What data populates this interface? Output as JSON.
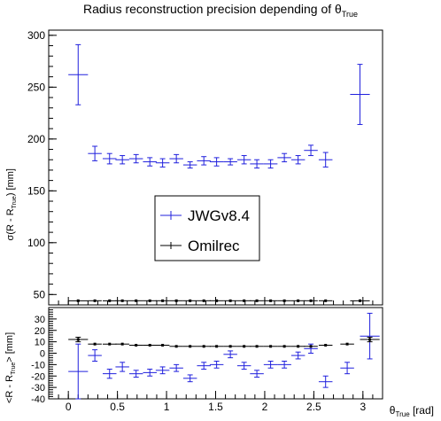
{
  "title": {
    "main": "Radius reconstruction precision depending of θ",
    "sub": "True"
  },
  "legend_labels": [
    "JWGv8.4",
    "Omilrec"
  ],
  "colors": {
    "jwg": "#2020dd",
    "omil": "#000000"
  },
  "chart_data": [
    {
      "type": "scatter",
      "title": "Radius reconstruction precision depending of θTrue",
      "ylabel": "σ(R - R_True) [mm]",
      "xlim": [
        -0.2,
        3.2
      ],
      "ylim": [
        40,
        305
      ],
      "xticks": [
        "0",
        "0.5",
        "1",
        "1.5",
        "2",
        "2.5",
        "3"
      ],
      "yticks": [
        "50",
        "100",
        "150",
        "200",
        "250",
        "300"
      ],
      "legend": {
        "entries": [
          "JWGv8.4",
          "Omilrec"
        ],
        "placement": "center"
      },
      "grid": false,
      "series": [
        {
          "name": "JWGv8.4",
          "color": "#2020dd",
          "points": [
            {
              "x": 0.1,
              "xerr": 0.1,
              "y": 262,
              "yerr": 29
            },
            {
              "x": 0.27,
              "xerr": 0.07,
              "y": 186,
              "yerr": 7
            },
            {
              "x": 0.42,
              "xerr": 0.07,
              "y": 181,
              "yerr": 5
            },
            {
              "x": 0.55,
              "xerr": 0.07,
              "y": 180,
              "yerr": 4
            },
            {
              "x": 0.69,
              "xerr": 0.07,
              "y": 181,
              "yerr": 4
            },
            {
              "x": 0.83,
              "xerr": 0.07,
              "y": 178,
              "yerr": 4
            },
            {
              "x": 0.96,
              "xerr": 0.07,
              "y": 177,
              "yerr": 4
            },
            {
              "x": 1.1,
              "xerr": 0.07,
              "y": 181,
              "yerr": 4
            },
            {
              "x": 1.24,
              "xerr": 0.07,
              "y": 175,
              "yerr": 3
            },
            {
              "x": 1.38,
              "xerr": 0.07,
              "y": 179,
              "yerr": 4
            },
            {
              "x": 1.51,
              "xerr": 0.07,
              "y": 178,
              "yerr": 4
            },
            {
              "x": 1.65,
              "xerr": 0.07,
              "y": 178,
              "yerr": 3
            },
            {
              "x": 1.79,
              "xerr": 0.07,
              "y": 180,
              "yerr": 4
            },
            {
              "x": 1.92,
              "xerr": 0.07,
              "y": 176,
              "yerr": 4
            },
            {
              "x": 2.06,
              "xerr": 0.07,
              "y": 176,
              "yerr": 4
            },
            {
              "x": 2.2,
              "xerr": 0.07,
              "y": 182,
              "yerr": 4
            },
            {
              "x": 2.34,
              "xerr": 0.07,
              "y": 180,
              "yerr": 4
            },
            {
              "x": 2.47,
              "xerr": 0.07,
              "y": 189,
              "yerr": 5
            },
            {
              "x": 2.62,
              "xerr": 0.07,
              "y": 180,
              "yerr": 7
            },
            {
              "x": 2.97,
              "xerr": 0.1,
              "y": 243,
              "yerr": 29
            }
          ]
        },
        {
          "name": "Omilrec",
          "color": "#000000",
          "points": [
            {
              "x": 0.1,
              "xerr": 0.1,
              "y": 44,
              "yerr": 1
            },
            {
              "x": 0.27,
              "xerr": 0.07,
              "y": 44,
              "yerr": 0.5
            },
            {
              "x": 0.42,
              "xerr": 0.07,
              "y": 44,
              "yerr": 0.5
            },
            {
              "x": 0.55,
              "xerr": 0.07,
              "y": 44,
              "yerr": 0.5
            },
            {
              "x": 0.69,
              "xerr": 0.07,
              "y": 44,
              "yerr": 0.5
            },
            {
              "x": 0.83,
              "xerr": 0.07,
              "y": 44,
              "yerr": 0.5
            },
            {
              "x": 0.96,
              "xerr": 0.07,
              "y": 44,
              "yerr": 0.5
            },
            {
              "x": 1.1,
              "xerr": 0.07,
              "y": 44,
              "yerr": 0.5
            },
            {
              "x": 1.24,
              "xerr": 0.07,
              "y": 44,
              "yerr": 0.5
            },
            {
              "x": 1.38,
              "xerr": 0.07,
              "y": 44,
              "yerr": 0.5
            },
            {
              "x": 1.51,
              "xerr": 0.07,
              "y": 44,
              "yerr": 0.5
            },
            {
              "x": 1.65,
              "xerr": 0.07,
              "y": 44,
              "yerr": 0.5
            },
            {
              "x": 1.79,
              "xerr": 0.07,
              "y": 44,
              "yerr": 0.5
            },
            {
              "x": 1.92,
              "xerr": 0.07,
              "y": 44,
              "yerr": 0.5
            },
            {
              "x": 2.06,
              "xerr": 0.07,
              "y": 44,
              "yerr": 0.5
            },
            {
              "x": 2.2,
              "xerr": 0.07,
              "y": 44,
              "yerr": 0.5
            },
            {
              "x": 2.34,
              "xerr": 0.07,
              "y": 44,
              "yerr": 0.5
            },
            {
              "x": 2.47,
              "xerr": 0.07,
              "y": 44,
              "yerr": 0.5
            },
            {
              "x": 2.62,
              "xerr": 0.07,
              "y": 44,
              "yerr": 0.5
            },
            {
              "x": 2.97,
              "xerr": 0.1,
              "y": 44,
              "yerr": 1
            }
          ]
        }
      ]
    },
    {
      "type": "scatter",
      "ylabel": "<R - R_True> [mm]",
      "xlabel": "θ_True [rad]",
      "xlim": [
        -0.2,
        3.2
      ],
      "ylim": [
        -40,
        40
      ],
      "xticks": [
        "0",
        "0.5",
        "1",
        "1.5",
        "2",
        "2.5",
        "3"
      ],
      "yticks": [
        "-40",
        "-30",
        "-20",
        "-10",
        "0",
        "10",
        "20",
        "30"
      ],
      "grid": false,
      "series": [
        {
          "name": "JWGv8.4",
          "color": "#2020dd",
          "points": [
            {
              "x": 0.1,
              "xerr": 0.1,
              "y": -16,
              "yerr": 24
            },
            {
              "x": 0.27,
              "xerr": 0.07,
              "y": -2,
              "yerr": 5
            },
            {
              "x": 0.42,
              "xerr": 0.07,
              "y": -18,
              "yerr": 4
            },
            {
              "x": 0.55,
              "xerr": 0.07,
              "y": -12,
              "yerr": 4
            },
            {
              "x": 0.69,
              "xerr": 0.07,
              "y": -18,
              "yerr": 3
            },
            {
              "x": 0.83,
              "xerr": 0.07,
              "y": -17,
              "yerr": 3
            },
            {
              "x": 0.96,
              "xerr": 0.07,
              "y": -15,
              "yerr": 3
            },
            {
              "x": 1.1,
              "xerr": 0.07,
              "y": -13,
              "yerr": 3
            },
            {
              "x": 1.24,
              "xerr": 0.07,
              "y": -22,
              "yerr": 3
            },
            {
              "x": 1.38,
              "xerr": 0.07,
              "y": -11,
              "yerr": 3
            },
            {
              "x": 1.51,
              "xerr": 0.07,
              "y": -10,
              "yerr": 3
            },
            {
              "x": 1.65,
              "xerr": 0.07,
              "y": -1,
              "yerr": 3
            },
            {
              "x": 1.79,
              "xerr": 0.07,
              "y": -11,
              "yerr": 3
            },
            {
              "x": 1.92,
              "xerr": 0.07,
              "y": -18,
              "yerr": 3
            },
            {
              "x": 2.06,
              "xerr": 0.07,
              "y": -10,
              "yerr": 3
            },
            {
              "x": 2.2,
              "xerr": 0.07,
              "y": -10,
              "yerr": 3
            },
            {
              "x": 2.34,
              "xerr": 0.07,
              "y": -2,
              "yerr": 3
            },
            {
              "x": 2.47,
              "xerr": 0.07,
              "y": 4,
              "yerr": 4
            },
            {
              "x": 2.62,
              "xerr": 0.07,
              "y": -25,
              "yerr": 5
            },
            {
              "x": 2.84,
              "xerr": 0.07,
              "y": -13,
              "yerr": 5
            },
            {
              "x": 3.07,
              "xerr": 0.1,
              "y": 15,
              "yerr": 20
            }
          ]
        },
        {
          "name": "Omilrec",
          "color": "#000000",
          "points": [
            {
              "x": 0.1,
              "xerr": 0.1,
              "y": 12,
              "yerr": 2
            },
            {
              "x": 0.27,
              "xerr": 0.07,
              "y": 8,
              "yerr": 1
            },
            {
              "x": 0.42,
              "xerr": 0.07,
              "y": 8,
              "yerr": 1
            },
            {
              "x": 0.55,
              "xerr": 0.07,
              "y": 8,
              "yerr": 1
            },
            {
              "x": 0.69,
              "xerr": 0.07,
              "y": 7,
              "yerr": 1
            },
            {
              "x": 0.83,
              "xerr": 0.07,
              "y": 7,
              "yerr": 1
            },
            {
              "x": 0.96,
              "xerr": 0.07,
              "y": 7,
              "yerr": 1
            },
            {
              "x": 1.1,
              "xerr": 0.07,
              "y": 6,
              "yerr": 1
            },
            {
              "x": 1.24,
              "xerr": 0.07,
              "y": 6,
              "yerr": 1
            },
            {
              "x": 1.38,
              "xerr": 0.07,
              "y": 6,
              "yerr": 1
            },
            {
              "x": 1.51,
              "xerr": 0.07,
              "y": 6,
              "yerr": 1
            },
            {
              "x": 1.65,
              "xerr": 0.07,
              "y": 6,
              "yerr": 1
            },
            {
              "x": 1.79,
              "xerr": 0.07,
              "y": 6,
              "yerr": 1
            },
            {
              "x": 1.92,
              "xerr": 0.07,
              "y": 6,
              "yerr": 1
            },
            {
              "x": 2.06,
              "xerr": 0.07,
              "y": 6,
              "yerr": 1
            },
            {
              "x": 2.2,
              "xerr": 0.07,
              "y": 6,
              "yerr": 1
            },
            {
              "x": 2.34,
              "xerr": 0.07,
              "y": 6,
              "yerr": 1
            },
            {
              "x": 2.47,
              "xerr": 0.07,
              "y": 6,
              "yerr": 1
            },
            {
              "x": 2.62,
              "xerr": 0.07,
              "y": 7,
              "yerr": 1
            },
            {
              "x": 2.84,
              "xerr": 0.07,
              "y": 8,
              "yerr": 1
            },
            {
              "x": 3.07,
              "xerr": 0.1,
              "y": 12,
              "yerr": 2
            }
          ]
        }
      ]
    }
  ]
}
